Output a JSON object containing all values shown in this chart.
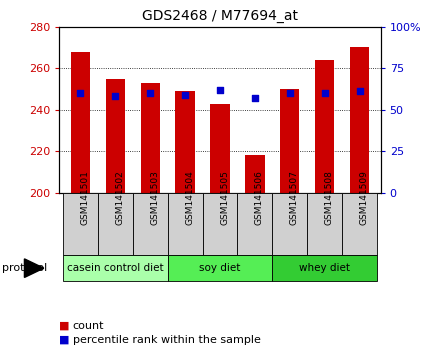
{
  "title": "GDS2468 / M77694_at",
  "samples": [
    "GSM141501",
    "GSM141502",
    "GSM141503",
    "GSM141504",
    "GSM141505",
    "GSM141506",
    "GSM141507",
    "GSM141508",
    "GSM141509"
  ],
  "count_values": [
    268,
    255,
    253,
    249,
    243,
    218,
    250,
    264,
    270
  ],
  "percentile_values": [
    60,
    58,
    60,
    59,
    62,
    57,
    60,
    60,
    61
  ],
  "ylim_left": [
    200,
    280
  ],
  "ylim_right": [
    0,
    100
  ],
  "yticks_left": [
    200,
    220,
    240,
    260,
    280
  ],
  "yticks_right": [
    0,
    25,
    50,
    75,
    100
  ],
  "ytick_labels_right": [
    "0",
    "25",
    "50",
    "75",
    "100%"
  ],
  "bar_color": "#cc0000",
  "dot_color": "#0000cc",
  "left_tick_color": "#cc0000",
  "right_tick_color": "#0000cc",
  "groups": [
    {
      "label": "casein control diet",
      "start": 0,
      "end": 3,
      "color": "#aaffaa"
    },
    {
      "label": "soy diet",
      "start": 3,
      "end": 6,
      "color": "#55ee55"
    },
    {
      "label": "whey diet",
      "start": 6,
      "end": 9,
      "color": "#33cc33"
    }
  ],
  "protocol_label": "protocol",
  "legend_count_label": "count",
  "legend_pct_label": "percentile rank within the sample",
  "bar_width": 0.55,
  "sample_box_color": "#d0d0d0",
  "background_color": "#ffffff"
}
